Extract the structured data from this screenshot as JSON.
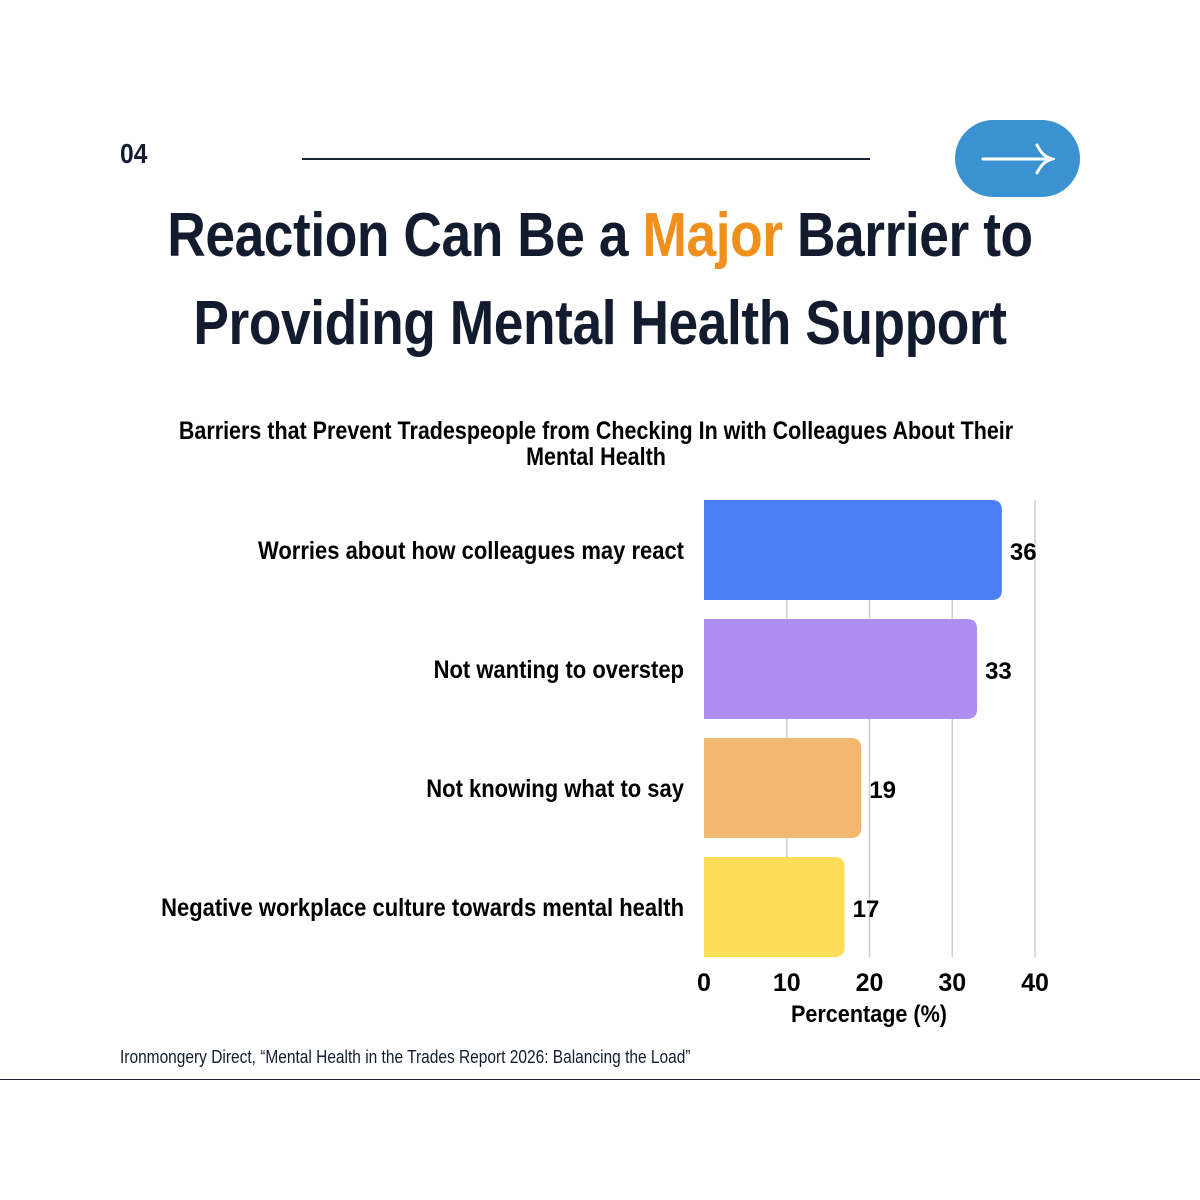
{
  "header": {
    "slide_number": "04",
    "next_icon": "arrow-right-icon"
  },
  "headline": {
    "part1": "Reaction Can Be a ",
    "accent": "Major",
    "part2": " Barrier to",
    "line2": "Providing Mental Health Support"
  },
  "colors": {
    "navy": "#131c2f",
    "accent": "#ef8f1c",
    "button": "#3a93d0"
  },
  "chart_data": {
    "type": "bar",
    "orientation": "horizontal",
    "title_line1": "Barriers that Prevent Tradespeople from Checking In with Colleagues About Their",
    "title_line2": "Mental Health",
    "categories": [
      "Worries about how colleagues may react",
      "Not wanting to overstep",
      "Not knowing what to say",
      "Negative workplace culture towards mental health"
    ],
    "values": [
      36,
      33,
      19,
      17
    ],
    "value_labels": [
      "36",
      "33",
      "19",
      "17"
    ],
    "colors": [
      "#4a80f5",
      "#ae8ef3",
      "#f2b870",
      "#ffde5a"
    ],
    "xlabel": "Percentage (%)",
    "ylabel": "",
    "xlim": [
      0,
      40
    ],
    "xticks": [
      0,
      10,
      20,
      30,
      40
    ],
    "xtick_labels": [
      "0",
      "10",
      "20",
      "30",
      "40"
    ],
    "grid": true
  },
  "footer": {
    "source": "Ironmongery Direct, “Mental Health in the Trades Report 2026: Balancing the Load”"
  }
}
